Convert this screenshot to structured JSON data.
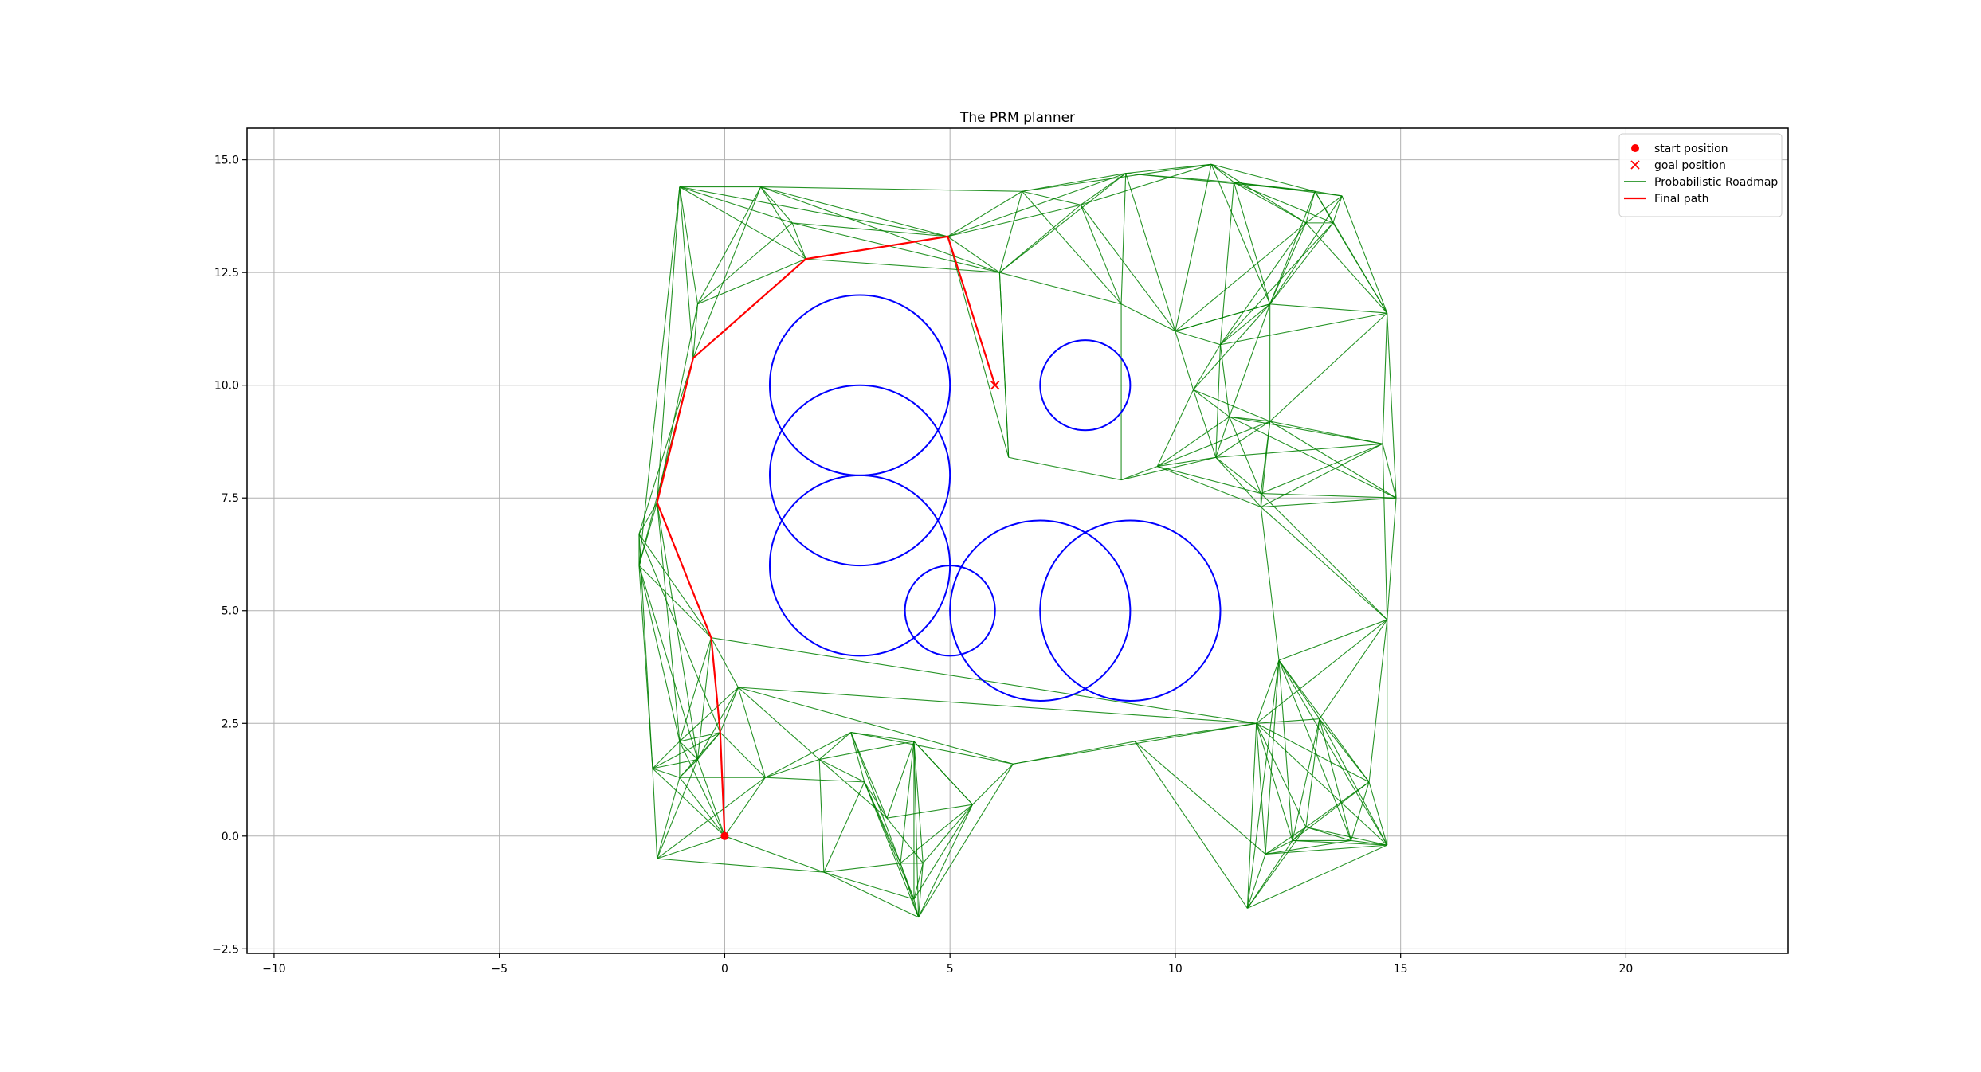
{
  "chart_data": {
    "type": "scatter",
    "title": "The PRM planner",
    "xlabel": "",
    "ylabel": "",
    "xlim": [
      -10.6,
      23.6
    ],
    "ylim": [
      -2.6,
      15.7
    ],
    "x_ticks": [
      -10,
      -5,
      0,
      5,
      10,
      15,
      20
    ],
    "x_tick_labels": [
      "−10",
      "−5",
      "0",
      "5",
      "10",
      "15",
      "20"
    ],
    "y_ticks": [
      -2.5,
      0.0,
      2.5,
      5.0,
      7.5,
      10.0,
      12.5,
      15.0
    ],
    "y_tick_labels": [
      "−2.5",
      "0.0",
      "2.5",
      "5.0",
      "7.5",
      "10.0",
      "12.5",
      "15.0"
    ],
    "grid": true,
    "legend_position": "top-right",
    "colors": {
      "start": "#ff0000",
      "goal": "#ff0000",
      "roadmap": "#008000",
      "path": "#ff0000",
      "obstacle": "#0000ff"
    },
    "legend": [
      {
        "label": "start position",
        "marker": "dot"
      },
      {
        "label": "goal position",
        "marker": "x"
      },
      {
        "label": "Probabilistic Roadmap",
        "marker": "line-green"
      },
      {
        "label": "Final path",
        "marker": "line-red"
      }
    ],
    "start": [
      0.0,
      0.0
    ],
    "goal": [
      6.0,
      10.0
    ],
    "obstacles": [
      {
        "cx": 3.0,
        "cy": 10.0,
        "r": 2.0
      },
      {
        "cx": 3.0,
        "cy": 8.0,
        "r": 2.0
      },
      {
        "cx": 3.0,
        "cy": 6.0,
        "r": 2.0
      },
      {
        "cx": 5.0,
        "cy": 5.0,
        "r": 1.0
      },
      {
        "cx": 7.0,
        "cy": 5.0,
        "r": 2.0
      },
      {
        "cx": 9.0,
        "cy": 5.0,
        "r": 2.0
      },
      {
        "cx": 8.0,
        "cy": 10.0,
        "r": 1.0
      }
    ],
    "final_path": [
      [
        0.0,
        0.0
      ],
      [
        -0.1,
        2.3
      ],
      [
        -0.3,
        4.4
      ],
      [
        -1.5,
        7.4
      ],
      [
        -0.7,
        10.6
      ],
      [
        1.8,
        12.8
      ],
      [
        4.95,
        13.3
      ],
      [
        6.0,
        10.0
      ]
    ],
    "roadmap_nodes": [
      [
        0.0,
        0.0
      ],
      [
        -1.0,
        1.3
      ],
      [
        -1.6,
        1.5
      ],
      [
        -1.5,
        -0.5
      ],
      [
        -0.6,
        1.7
      ],
      [
        -1.0,
        2.1
      ],
      [
        0.3,
        3.3
      ],
      [
        -0.1,
        2.3
      ],
      [
        0.9,
        1.3
      ],
      [
        2.1,
        1.7
      ],
      [
        2.8,
        2.3
      ],
      [
        3.1,
        1.2
      ],
      [
        2.2,
        -0.8
      ],
      [
        4.2,
        2.1
      ],
      [
        3.9,
        -0.6
      ],
      [
        4.2,
        -1.4
      ],
      [
        4.3,
        -1.8
      ],
      [
        5.5,
        0.7
      ],
      [
        6.4,
        1.6
      ],
      [
        9.1,
        2.1
      ],
      [
        4.4,
        -0.6
      ],
      [
        3.6,
        0.4
      ],
      [
        -0.3,
        4.4
      ],
      [
        -1.9,
        6.0
      ],
      [
        -1.9,
        6.7
      ],
      [
        -1.5,
        7.4
      ],
      [
        -0.7,
        10.6
      ],
      [
        -0.6,
        11.8
      ],
      [
        -1.0,
        14.4
      ],
      [
        0.8,
        14.4
      ],
      [
        1.5,
        13.6
      ],
      [
        1.8,
        12.8
      ],
      [
        4.95,
        13.3
      ],
      [
        6.6,
        14.3
      ],
      [
        7.9,
        14.0
      ],
      [
        8.9,
        14.7
      ],
      [
        10.8,
        14.9
      ],
      [
        11.3,
        14.5
      ],
      [
        13.1,
        14.3
      ],
      [
        13.7,
        14.2
      ],
      [
        14.7,
        11.6
      ],
      [
        14.9,
        7.5
      ],
      [
        14.6,
        8.7
      ],
      [
        14.7,
        4.8
      ],
      [
        13.5,
        13.6
      ],
      [
        12.9,
        13.6
      ],
      [
        12.1,
        11.8
      ],
      [
        11.0,
        10.9
      ],
      [
        10.4,
        9.9
      ],
      [
        11.2,
        9.3
      ],
      [
        12.1,
        9.2
      ],
      [
        11.9,
        7.6
      ],
      [
        11.9,
        7.3
      ],
      [
        10.9,
        8.4
      ],
      [
        10.0,
        11.2
      ],
      [
        8.8,
        11.8
      ],
      [
        6.1,
        12.5
      ],
      [
        6.3,
        8.4
      ],
      [
        8.8,
        7.9
      ],
      [
        9.6,
        8.2
      ],
      [
        12.3,
        3.9
      ],
      [
        11.8,
        2.5
      ],
      [
        13.2,
        2.6
      ],
      [
        14.3,
        1.2
      ],
      [
        14.7,
        -0.2
      ],
      [
        13.9,
        -0.1
      ],
      [
        12.6,
        -0.1
      ],
      [
        12.0,
        -0.4
      ],
      [
        11.6,
        -1.6
      ],
      [
        12.9,
        0.2
      ]
    ],
    "roadmap_edges": [
      [
        0,
        1
      ],
      [
        0,
        2
      ],
      [
        0,
        3
      ],
      [
        0,
        4
      ],
      [
        0,
        5
      ],
      [
        0,
        7
      ],
      [
        0,
        8
      ],
      [
        0,
        12
      ],
      [
        1,
        2
      ],
      [
        1,
        3
      ],
      [
        1,
        4
      ],
      [
        1,
        5
      ],
      [
        1,
        7
      ],
      [
        1,
        8
      ],
      [
        2,
        3
      ],
      [
        2,
        4
      ],
      [
        2,
        5
      ],
      [
        2,
        7
      ],
      [
        3,
        4
      ],
      [
        3,
        8
      ],
      [
        3,
        12
      ],
      [
        4,
        5
      ],
      [
        4,
        7
      ],
      [
        4,
        6
      ],
      [
        5,
        6
      ],
      [
        5,
        7
      ],
      [
        6,
        7
      ],
      [
        6,
        8
      ],
      [
        6,
        9
      ],
      [
        6,
        22
      ],
      [
        7,
        8
      ],
      [
        7,
        22
      ],
      [
        8,
        9
      ],
      [
        8,
        10
      ],
      [
        8,
        11
      ],
      [
        9,
        10
      ],
      [
        9,
        11
      ],
      [
        9,
        12
      ],
      [
        9,
        13
      ],
      [
        10,
        11
      ],
      [
        10,
        13
      ],
      [
        10,
        14
      ],
      [
        10,
        21
      ],
      [
        11,
        12
      ],
      [
        11,
        14
      ],
      [
        11,
        15
      ],
      [
        11,
        16
      ],
      [
        11,
        21
      ],
      [
        12,
        14
      ],
      [
        12,
        15
      ],
      [
        12,
        16
      ],
      [
        13,
        14
      ],
      [
        13,
        15
      ],
      [
        13,
        16
      ],
      [
        13,
        17
      ],
      [
        13,
        20
      ],
      [
        13,
        21
      ],
      [
        14,
        15
      ],
      [
        14,
        16
      ],
      [
        14,
        17
      ],
      [
        14,
        20
      ],
      [
        15,
        16
      ],
      [
        15,
        17
      ],
      [
        15,
        20
      ],
      [
        16,
        17
      ],
      [
        16,
        18
      ],
      [
        16,
        20
      ],
      [
        17,
        18
      ],
      [
        17,
        20
      ],
      [
        17,
        13
      ],
      [
        18,
        19
      ],
      [
        18,
        10
      ],
      [
        19,
        61
      ],
      [
        19,
        68
      ],
      [
        19,
        67
      ],
      [
        6,
        18
      ],
      [
        20,
        21
      ],
      [
        21,
        9
      ],
      [
        21,
        17
      ],
      [
        22,
        7
      ],
      [
        22,
        5
      ],
      [
        22,
        23
      ],
      [
        22,
        24
      ],
      [
        22,
        25
      ],
      [
        22,
        4
      ],
      [
        23,
        24
      ],
      [
        23,
        25
      ],
      [
        23,
        5
      ],
      [
        23,
        2
      ],
      [
        23,
        4
      ],
      [
        24,
        25
      ],
      [
        24,
        2
      ],
      [
        24,
        7
      ],
      [
        25,
        26
      ],
      [
        25,
        27
      ],
      [
        25,
        22
      ],
      [
        25,
        5
      ],
      [
        25,
        4
      ],
      [
        26,
        27
      ],
      [
        26,
        28
      ],
      [
        26,
        31
      ],
      [
        26,
        29
      ],
      [
        26,
        23
      ],
      [
        26,
        24
      ],
      [
        27,
        28
      ],
      [
        27,
        29
      ],
      [
        27,
        30
      ],
      [
        27,
        31
      ],
      [
        28,
        29
      ],
      [
        28,
        30
      ],
      [
        28,
        31
      ],
      [
        28,
        32
      ],
      [
        28,
        23
      ],
      [
        28,
        25
      ],
      [
        29,
        30
      ],
      [
        29,
        31
      ],
      [
        29,
        32
      ],
      [
        29,
        56
      ],
      [
        30,
        31
      ],
      [
        30,
        32
      ],
      [
        30,
        56
      ],
      [
        31,
        32
      ],
      [
        31,
        56
      ],
      [
        32,
        33
      ],
      [
        32,
        34
      ],
      [
        32,
        56
      ],
      [
        32,
        35
      ],
      [
        29,
        33
      ],
      [
        33,
        34
      ],
      [
        33,
        35
      ],
      [
        33,
        56
      ],
      [
        33,
        36
      ],
      [
        33,
        55
      ],
      [
        34,
        35
      ],
      [
        34,
        55
      ],
      [
        34,
        56
      ],
      [
        34,
        36
      ],
      [
        34,
        54
      ],
      [
        35,
        36
      ],
      [
        35,
        37
      ],
      [
        35,
        55
      ],
      [
        35,
        54
      ],
      [
        35,
        56
      ],
      [
        35,
        38
      ],
      [
        36,
        37
      ],
      [
        36,
        38
      ],
      [
        36,
        45
      ],
      [
        36,
        46
      ],
      [
        36,
        54
      ],
      [
        37,
        38
      ],
      [
        37,
        39
      ],
      [
        37,
        44
      ],
      [
        37,
        45
      ],
      [
        37,
        46
      ],
      [
        37,
        47
      ],
      [
        38,
        39
      ],
      [
        38,
        40
      ],
      [
        38,
        44
      ],
      [
        38,
        45
      ],
      [
        38,
        46
      ],
      [
        39,
        40
      ],
      [
        39,
        44
      ],
      [
        39,
        45
      ],
      [
        39,
        46
      ],
      [
        40,
        41
      ],
      [
        40,
        42
      ],
      [
        40,
        44
      ],
      [
        40,
        45
      ],
      [
        40,
        46
      ],
      [
        40,
        47
      ],
      [
        40,
        50
      ],
      [
        41,
        42
      ],
      [
        41,
        43
      ],
      [
        41,
        50
      ],
      [
        41,
        51
      ],
      [
        41,
        52
      ],
      [
        41,
        49
      ],
      [
        42,
        43
      ],
      [
        42,
        49
      ],
      [
        42,
        50
      ],
      [
        42,
        51
      ],
      [
        42,
        52
      ],
      [
        42,
        53
      ],
      [
        43,
        60
      ],
      [
        43,
        61
      ],
      [
        43,
        62
      ],
      [
        43,
        52
      ],
      [
        43,
        51
      ],
      [
        44,
        45
      ],
      [
        44,
        46
      ],
      [
        44,
        47
      ],
      [
        45,
        46
      ],
      [
        45,
        47
      ],
      [
        45,
        54
      ],
      [
        46,
        47
      ],
      [
        46,
        48
      ],
      [
        46,
        54
      ],
      [
        46,
        49
      ],
      [
        46,
        50
      ],
      [
        47,
        48
      ],
      [
        47,
        49
      ],
      [
        47,
        53
      ],
      [
        47,
        54
      ],
      [
        48,
        49
      ],
      [
        48,
        53
      ],
      [
        48,
        54
      ],
      [
        48,
        59
      ],
      [
        48,
        50
      ],
      [
        49,
        50
      ],
      [
        49,
        51
      ],
      [
        49,
        53
      ],
      [
        49,
        59
      ],
      [
        50,
        51
      ],
      [
        50,
        52
      ],
      [
        50,
        53
      ],
      [
        50,
        59
      ],
      [
        51,
        52
      ],
      [
        51,
        53
      ],
      [
        51,
        59
      ],
      [
        52,
        53
      ],
      [
        52,
        59
      ],
      [
        53,
        59
      ],
      [
        53,
        58
      ],
      [
        54,
        55
      ],
      [
        54,
        46
      ],
      [
        55,
        56
      ],
      [
        55,
        58
      ],
      [
        56,
        57
      ],
      [
        57,
        58
      ],
      [
        58,
        59
      ],
      [
        56,
        57
      ],
      [
        32,
        57
      ],
      [
        52,
        60
      ],
      [
        60,
        61
      ],
      [
        60,
        62
      ],
      [
        60,
        63
      ],
      [
        60,
        64
      ],
      [
        60,
        65
      ],
      [
        60,
        66
      ],
      [
        60,
        67
      ],
      [
        60,
        68
      ],
      [
        61,
        62
      ],
      [
        61,
        63
      ],
      [
        61,
        66
      ],
      [
        61,
        67
      ],
      [
        61,
        68
      ],
      [
        61,
        69
      ],
      [
        61,
        18
      ],
      [
        61,
        22
      ],
      [
        62,
        63
      ],
      [
        62,
        64
      ],
      [
        62,
        65
      ],
      [
        62,
        66
      ],
      [
        62,
        69
      ],
      [
        63,
        64
      ],
      [
        63,
        65
      ],
      [
        63,
        66
      ],
      [
        63,
        69
      ],
      [
        64,
        65
      ],
      [
        64,
        66
      ],
      [
        64,
        67
      ],
      [
        64,
        68
      ],
      [
        64,
        69
      ],
      [
        65,
        66
      ],
      [
        65,
        67
      ],
      [
        65,
        69
      ],
      [
        66,
        67
      ],
      [
        66,
        68
      ],
      [
        66,
        69
      ],
      [
        67,
        68
      ],
      [
        67,
        69
      ],
      [
        68,
        69
      ],
      [
        43,
        63
      ],
      [
        43,
        64
      ],
      [
        61,
        64
      ],
      [
        6,
        61
      ]
    ]
  }
}
